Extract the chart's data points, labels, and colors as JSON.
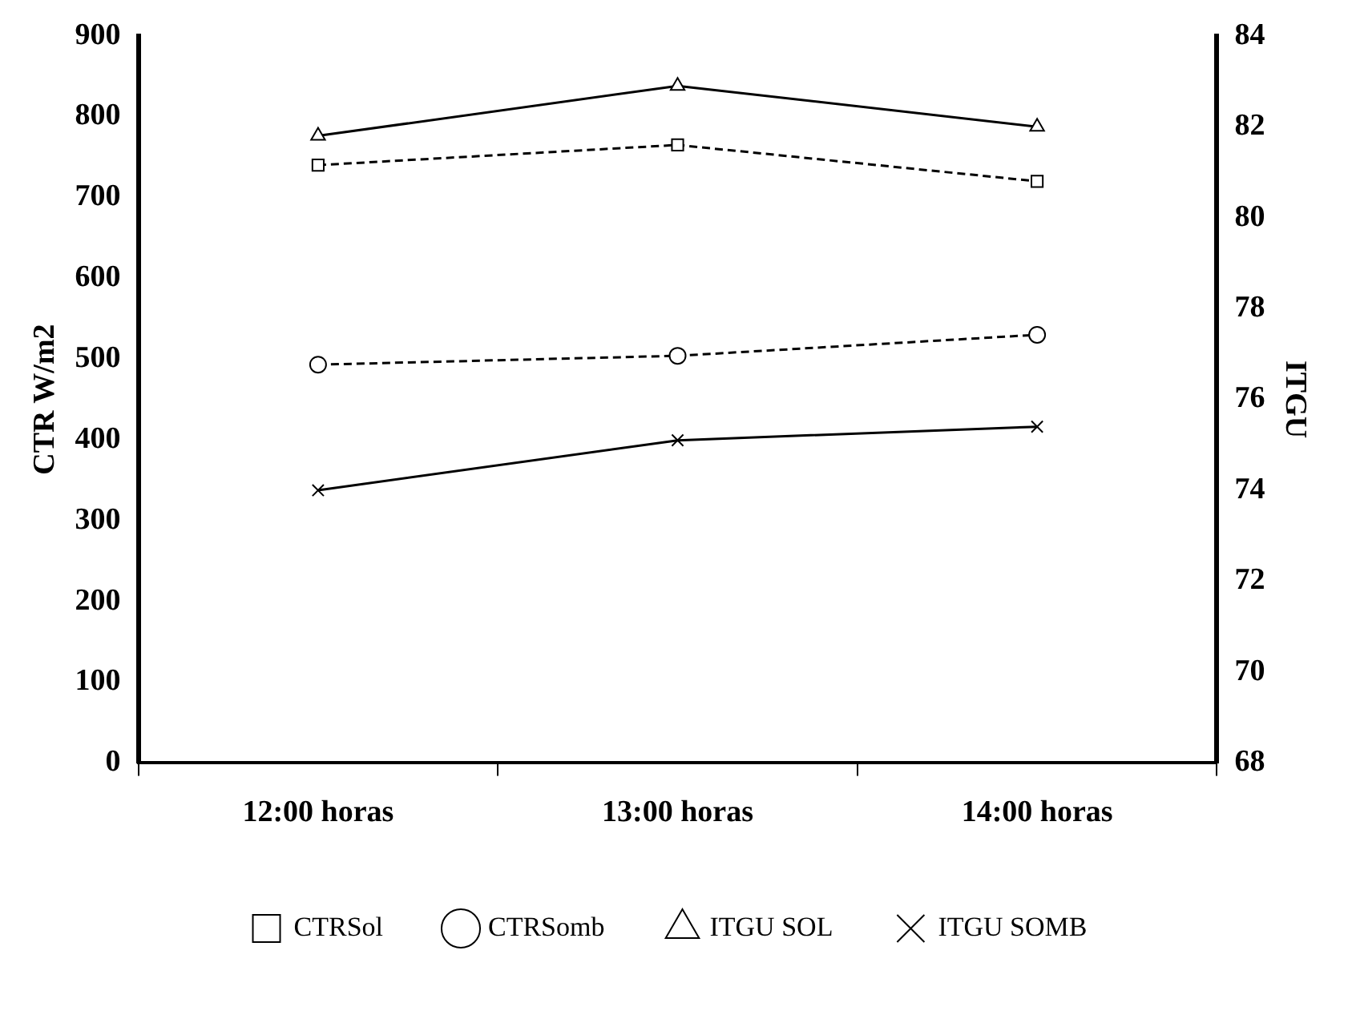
{
  "chart_data": {
    "type": "line",
    "categories": [
      "12:00 horas",
      "13:00 horas",
      "14:00 horas"
    ],
    "ylabel": "CTR W/m2",
    "y2label": "ITGU",
    "ylim": [
      0,
      900
    ],
    "yticks": [
      0,
      100,
      200,
      300,
      400,
      500,
      600,
      700,
      800,
      900
    ],
    "y2lim": [
      68,
      84
    ],
    "y2ticks": [
      68,
      70,
      72,
      74,
      76,
      78,
      80,
      82,
      84
    ],
    "grid": false,
    "legend": "bottom",
    "series": [
      {
        "name": "CTRSol",
        "color": "#000000",
        "values": [
          740,
          765,
          720
        ],
        "marker": "square",
        "line_style": "dashed"
      },
      {
        "name": "CTRSomb",
        "color": "#000000",
        "values": [
          493,
          504,
          530
        ],
        "marker": "circle",
        "line_style": "dashed"
      },
      {
        "name": "ITGU SOL",
        "color": "#000000",
        "values": [
          81.8,
          82.9,
          82.0
        ],
        "marker": "triangle",
        "line_style": "solid",
        "axis": "y2"
      },
      {
        "name": "ITGU SOMB",
        "color": "#000000",
        "values": [
          74.0,
          75.1,
          75.4
        ],
        "marker": "cross",
        "line_style": "solid",
        "axis": "y2"
      }
    ]
  }
}
